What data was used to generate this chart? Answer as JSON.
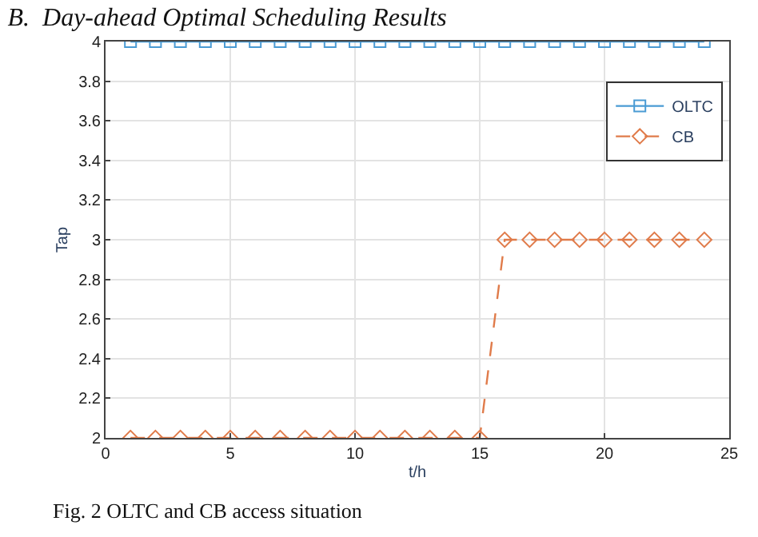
{
  "chart_data": {
    "type": "line",
    "title": "B.  Day-ahead Optimal Scheduling Results",
    "xlabel": "t/h",
    "ylabel": "Tap",
    "x": [
      1,
      2,
      3,
      4,
      5,
      6,
      7,
      8,
      9,
      10,
      11,
      12,
      13,
      14,
      15,
      16,
      17,
      18,
      19,
      20,
      21,
      22,
      23,
      24
    ],
    "series": [
      {
        "name": "OLTC",
        "color": "#4a9bd4",
        "marker": "square",
        "line_style": "solid",
        "values": [
          4,
          4,
          4,
          4,
          4,
          4,
          4,
          4,
          4,
          4,
          4,
          4,
          4,
          4,
          4,
          4,
          4,
          4,
          4,
          4,
          4,
          4,
          4,
          4
        ]
      },
      {
        "name": "CB",
        "color": "#e07b4a",
        "marker": "diamond",
        "line_style": "dashed",
        "values": [
          2,
          2,
          2,
          2,
          2,
          2,
          2,
          2,
          2,
          2,
          2,
          2,
          2,
          2,
          2,
          3,
          3,
          3,
          3,
          3,
          3,
          3,
          3,
          3
        ]
      }
    ],
    "xlim": [
      0,
      25
    ],
    "xticks": [
      0,
      5,
      10,
      15,
      20,
      25
    ],
    "ylim": [
      2,
      4
    ],
    "yticks": [
      2,
      2.2,
      2.4,
      2.6,
      2.8,
      3,
      3.2,
      3.4,
      3.6,
      3.8,
      4
    ],
    "grid": true,
    "legend": "top right",
    "annotations": [
      "Fig. 2 OLTC and CB access situation"
    ]
  }
}
